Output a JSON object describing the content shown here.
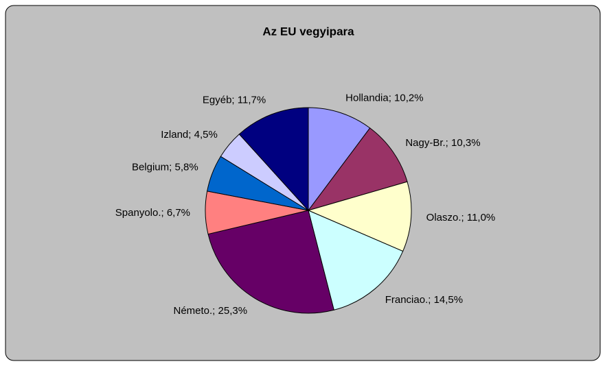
{
  "chart_data": {
    "type": "pie",
    "title": "Az EU vegyipara",
    "values": [
      10.2,
      10.3,
      11.0,
      14.5,
      25.3,
      6.7,
      5.8,
      4.5,
      11.7
    ],
    "value_labels": [
      "Hollandia; 10,2%",
      "Nagy-Br.; 10,3%",
      "Olaszo.; 11,0%",
      "Franciao.; 14,5%",
      "Németo.; 25,3%",
      "Spanyolo.; 6,7%",
      "Belgium; 5,8%",
      "Izland; 4,5%",
      "Egyéb; 11,7%"
    ],
    "colors": [
      "#9999ff",
      "#993366",
      "#ffffcc",
      "#ccffff",
      "#660066",
      "#ff8080",
      "#0066cc",
      "#ccccff",
      "#000080"
    ]
  }
}
